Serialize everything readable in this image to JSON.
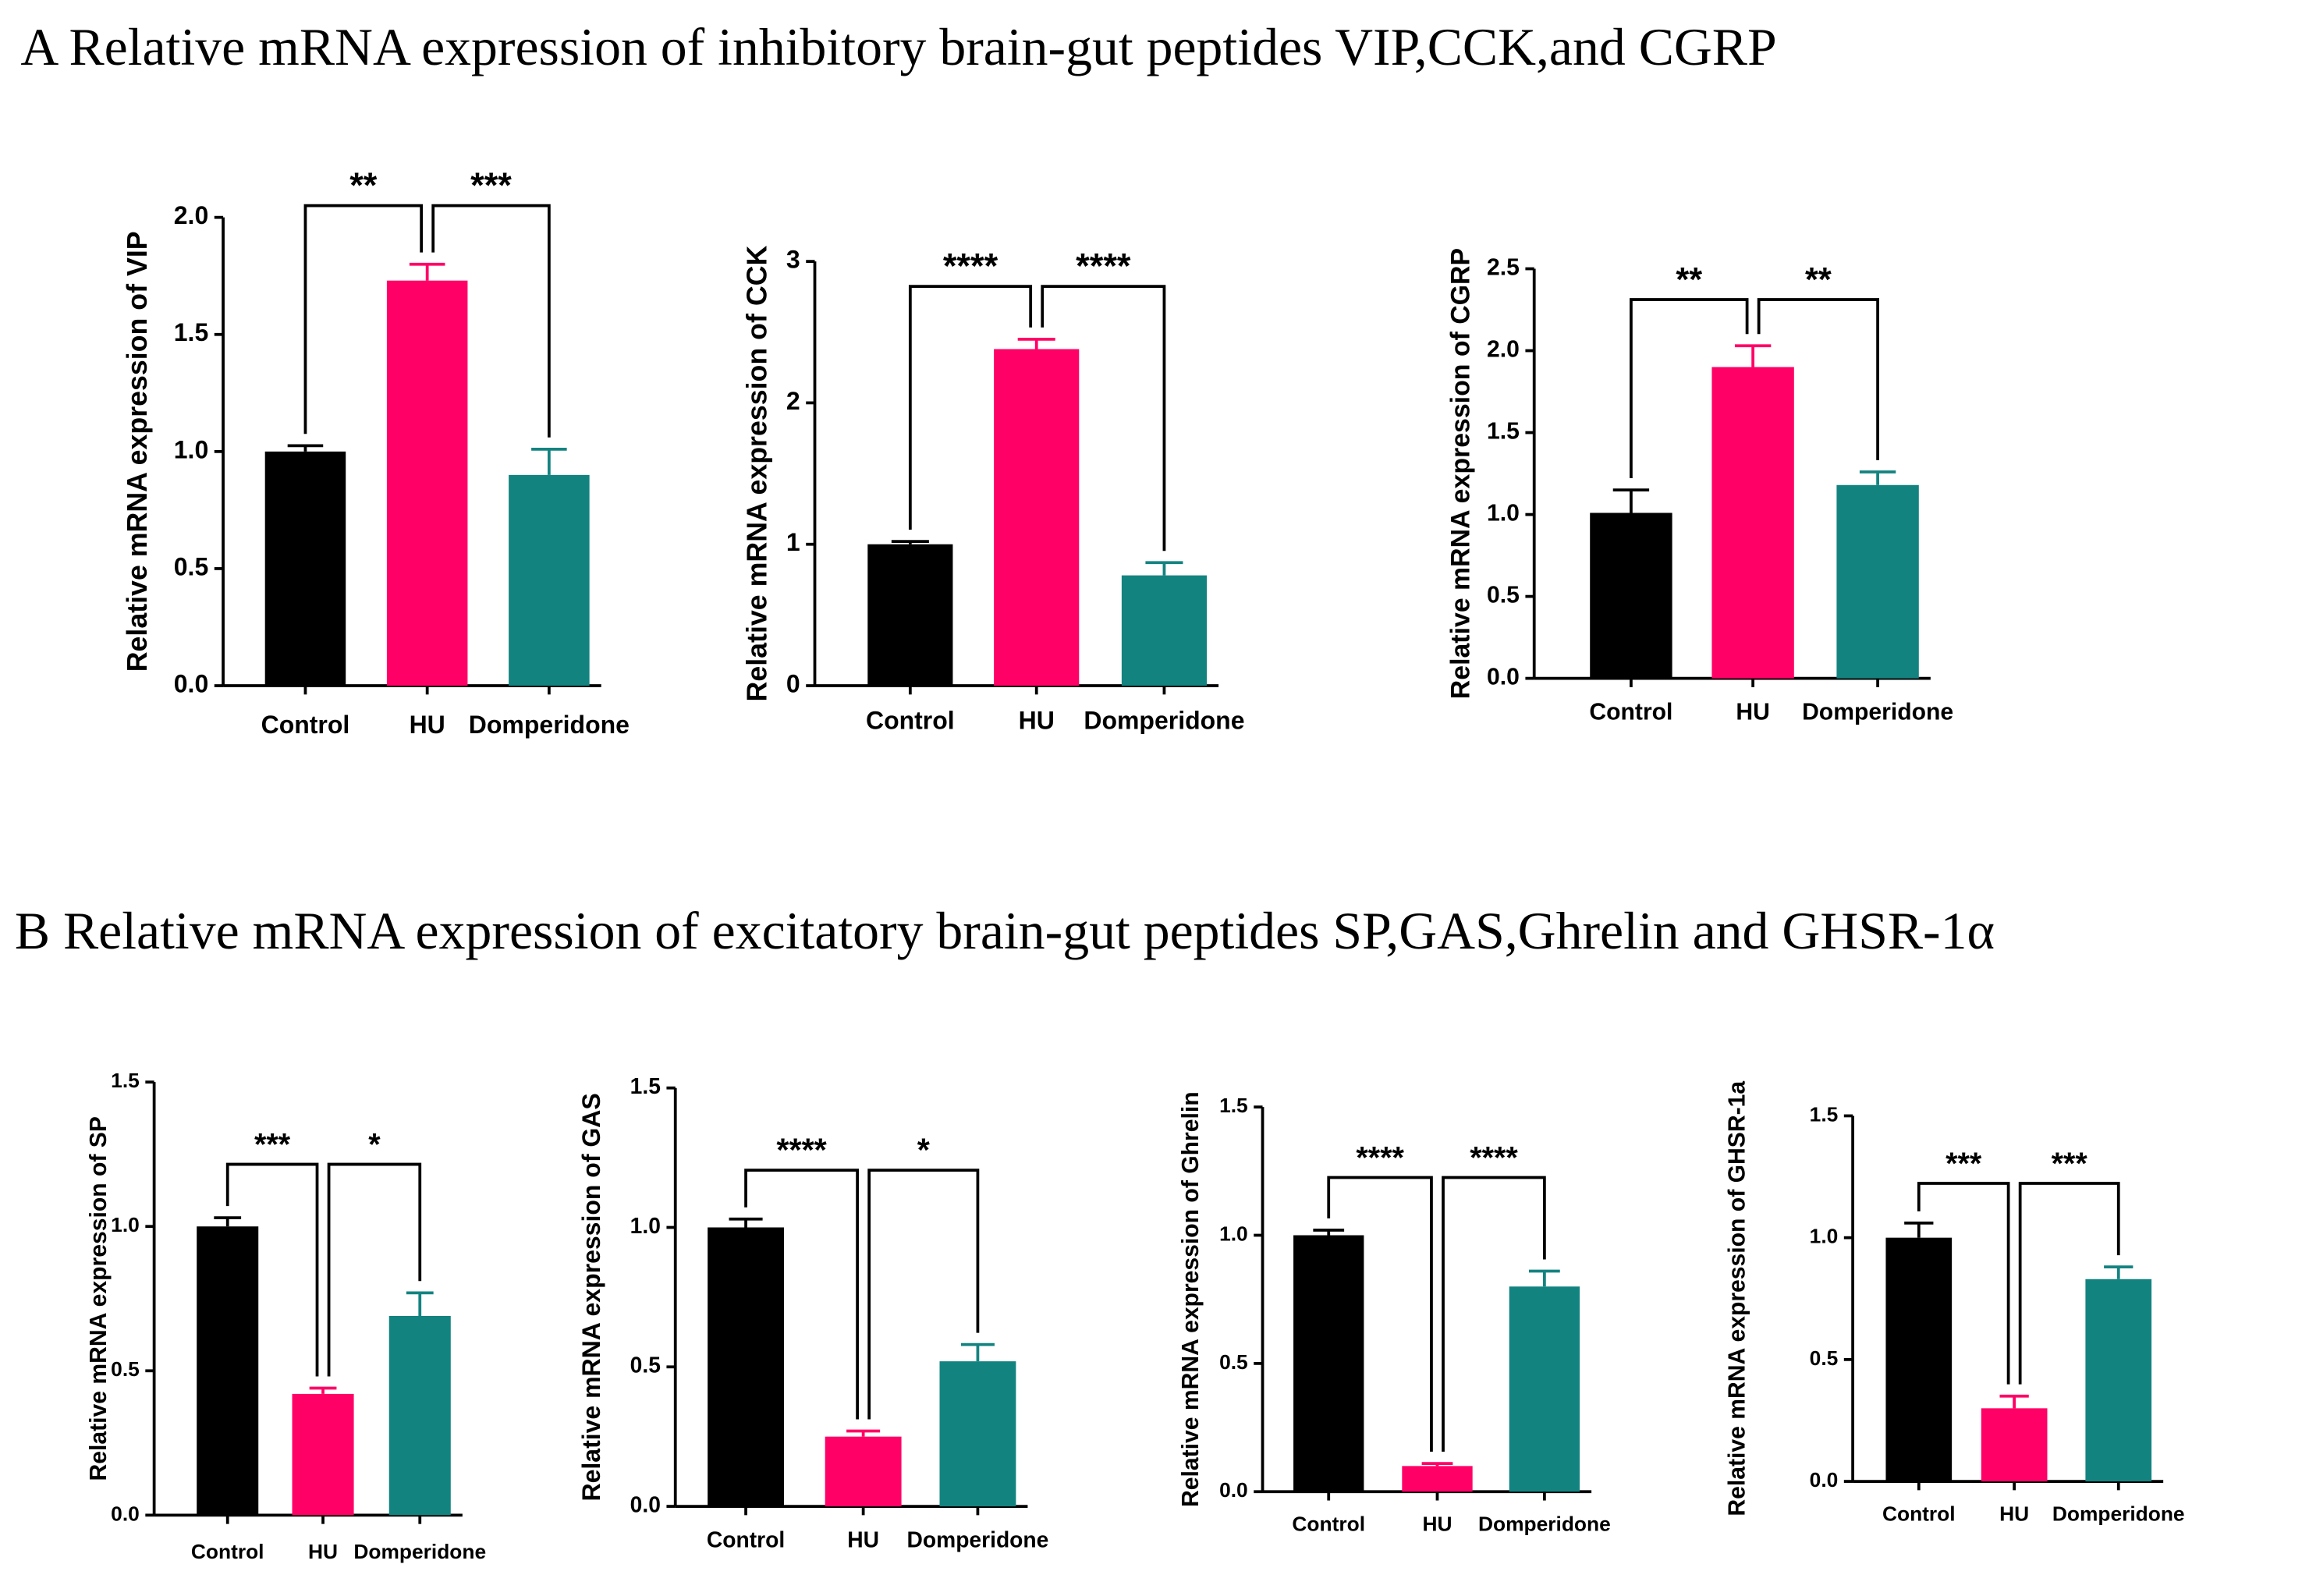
{
  "sections": [
    {
      "title": "A Relative mRNA expression of inhibitory brain-gut peptides VIP,CCK,and CGRP"
    },
    {
      "title": "B Relative mRNA expression of excitatory brain-gut peptides SP,GAS,Ghrelin and GHSR-1α"
    }
  ],
  "chart_data": [
    {
      "type": "bar",
      "ylabel": "Relative mRNA expression of VIP",
      "categories": [
        "Control",
        "HU",
        "Domperidone"
      ],
      "values": [
        1.0,
        1.73,
        0.9
      ],
      "errors": [
        0.025,
        0.07,
        0.11
      ],
      "colors": [
        "#000000",
        "#ff0066",
        "#138380"
      ],
      "ylim": [
        0,
        2
      ],
      "yticks": [
        {
          "value": 0,
          "label": "0.0"
        },
        {
          "value": 0.5,
          "label": "0.5"
        },
        {
          "value": 1,
          "label": "1.0"
        },
        {
          "value": 1.5,
          "label": "1.5"
        },
        {
          "value": 2,
          "label": "2.0"
        }
      ],
      "significance": [
        "**",
        "***"
      ]
    },
    {
      "type": "bar",
      "ylabel": "Relative mRNA expression of CCK",
      "categories": [
        "Control",
        "HU",
        "Domperidone"
      ],
      "values": [
        1.0,
        2.38,
        0.78
      ],
      "errors": [
        0.02,
        0.07,
        0.09
      ],
      "colors": [
        "#000000",
        "#ff0066",
        "#138380"
      ],
      "ylim": [
        0,
        3
      ],
      "yticks": [
        0,
        1,
        2,
        3
      ],
      "significance": [
        "****",
        "****"
      ]
    },
    {
      "type": "bar",
      "ylabel": "Relative mRNA expression of CGRP",
      "categories": [
        "Control",
        "HU",
        "Domperidone"
      ],
      "values": [
        1.01,
        1.9,
        1.18
      ],
      "errors": [
        0.14,
        0.13,
        0.08
      ],
      "colors": [
        "#000000",
        "#ff0066",
        "#138380"
      ],
      "ylim": [
        0,
        2.5
      ],
      "yticks": [
        {
          "value": 0,
          "label": "0.0"
        },
        {
          "value": 0.5,
          "label": "0.5"
        },
        {
          "value": 1,
          "label": "1.0"
        },
        {
          "value": 1.5,
          "label": "1.5"
        },
        {
          "value": 2,
          "label": "2.0"
        },
        {
          "value": 2.5,
          "label": "2.5"
        }
      ],
      "significance": [
        "**",
        "**"
      ]
    },
    {
      "type": "bar",
      "ylabel": "Relative mRNA expression of SP",
      "categories": [
        "Control",
        "HU",
        "Domperidone"
      ],
      "values": [
        1.0,
        0.42,
        0.69
      ],
      "errors": [
        0.03,
        0.02,
        0.08
      ],
      "colors": [
        "#000000",
        "#ff0066",
        "#138380"
      ],
      "ylim": [
        0,
        1.5
      ],
      "yticks": [
        {
          "value": 0,
          "label": "0.0"
        },
        {
          "value": 0.5,
          "label": "0.5"
        },
        {
          "value": 1,
          "label": "1.0"
        },
        {
          "value": 1.5,
          "label": "1.5"
        }
      ],
      "significance": [
        "***",
        "*"
      ]
    },
    {
      "type": "bar",
      "ylabel": "Relative mRNA expression of GAS",
      "categories": [
        "Control",
        "HU",
        "Domperidone"
      ],
      "values": [
        1.0,
        0.25,
        0.52
      ],
      "errors": [
        0.03,
        0.02,
        0.06
      ],
      "colors": [
        "#000000",
        "#ff0066",
        "#138380"
      ],
      "ylim": [
        0,
        1.5
      ],
      "yticks": [
        {
          "value": 0,
          "label": "0.0"
        },
        {
          "value": 0.5,
          "label": "0.5"
        },
        {
          "value": 1,
          "label": "1.0"
        },
        {
          "value": 1.5,
          "label": "1.5"
        }
      ],
      "significance": [
        "****",
        "*"
      ]
    },
    {
      "type": "bar",
      "ylabel": "Relative mRNA expression of Ghrelin",
      "categories": [
        "Control",
        "HU",
        "Domperidone"
      ],
      "values": [
        1.0,
        0.1,
        0.8
      ],
      "errors": [
        0.02,
        0.01,
        0.06
      ],
      "colors": [
        "#000000",
        "#ff0066",
        "#138380"
      ],
      "ylim": [
        0,
        1.5
      ],
      "yticks": [
        {
          "value": 0,
          "label": "0.0"
        },
        {
          "value": 0.5,
          "label": "0.5"
        },
        {
          "value": 1,
          "label": "1.0"
        },
        {
          "value": 1.5,
          "label": "1.5"
        }
      ],
      "significance": [
        "****",
        "****"
      ]
    },
    {
      "type": "bar",
      "ylabel": "Relative mRNA expression of GHSR-1a",
      "categories": [
        "Control",
        "HU",
        "Domperidone"
      ],
      "values": [
        1.0,
        0.3,
        0.83
      ],
      "errors": [
        0.06,
        0.05,
        0.05
      ],
      "colors": [
        "#000000",
        "#ff0066",
        "#138380"
      ],
      "ylim": [
        0,
        1.5
      ],
      "yticks": [
        {
          "value": 0,
          "label": "0.0"
        },
        {
          "value": 0.5,
          "label": "0.5"
        },
        {
          "value": 1,
          "label": "1.0"
        },
        {
          "value": 1.5,
          "label": "1.5"
        }
      ],
      "significance": [
        "***",
        "***"
      ]
    }
  ]
}
